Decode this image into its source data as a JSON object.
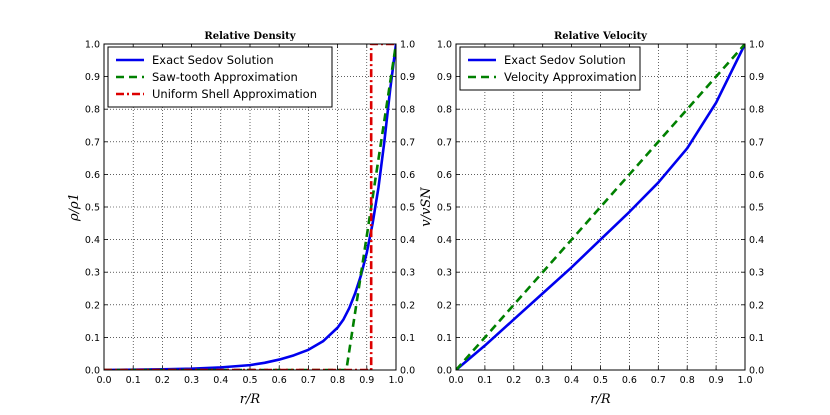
{
  "chart_data": [
    {
      "type": "line",
      "title": "Relative Density",
      "xlabel": "r/R",
      "ylabel": "ρ/ρ1",
      "xlim": [
        0.0,
        1.0
      ],
      "ylim": [
        0.0,
        1.0
      ],
      "xticks": [
        "0.0",
        "0.1",
        "0.2",
        "0.3",
        "0.4",
        "0.5",
        "0.6",
        "0.7",
        "0.8",
        "0.9",
        "1.0"
      ],
      "yticks": [
        "0.0",
        "0.1",
        "0.2",
        "0.3",
        "0.4",
        "0.5",
        "0.6",
        "0.7",
        "0.8",
        "0.9",
        "1.0"
      ],
      "grid": true,
      "legend_position": "top-left",
      "series": [
        {
          "name": "Exact Sedov Solution",
          "color": "#0000ee",
          "style": "solid",
          "x": [
            0.0,
            0.1,
            0.2,
            0.3,
            0.4,
            0.5,
            0.55,
            0.6,
            0.65,
            0.7,
            0.75,
            0.8,
            0.82,
            0.84,
            0.86,
            0.88,
            0.9,
            0.92,
            0.94,
            0.96,
            0.98,
            1.0
          ],
          "y": [
            0.0,
            0.001,
            0.002,
            0.004,
            0.008,
            0.015,
            0.022,
            0.032,
            0.045,
            0.062,
            0.088,
            0.13,
            0.155,
            0.19,
            0.235,
            0.29,
            0.36,
            0.45,
            0.56,
            0.7,
            0.86,
            1.0
          ]
        },
        {
          "name": "Saw-tooth Approximation",
          "color": "#008000",
          "style": "dashed",
          "x": [
            0.0,
            0.83,
            1.0
          ],
          "y": [
            0.0,
            0.0,
            1.0
          ]
        },
        {
          "name": "Uniform Shell Approximation",
          "color": "#dd0000",
          "style": "dashdot",
          "x": [
            0.0,
            0.915,
            0.915,
            1.0
          ],
          "y": [
            0.0,
            0.0,
            1.0,
            1.0
          ]
        }
      ]
    },
    {
      "type": "line",
      "title": "Relative Velocity",
      "xlabel": "r/R",
      "ylabel": "v/vSN",
      "xlim": [
        0.0,
        1.0
      ],
      "ylim": [
        0.0,
        1.0
      ],
      "xticks": [
        "0.0",
        "0.1",
        "0.2",
        "0.3",
        "0.4",
        "0.5",
        "0.6",
        "0.7",
        "0.8",
        "0.9",
        "1.0"
      ],
      "yticks": [
        "0.0",
        "0.1",
        "0.2",
        "0.3",
        "0.4",
        "0.5",
        "0.6",
        "0.7",
        "0.8",
        "0.9",
        "1.0"
      ],
      "grid": true,
      "legend_position": "top-left",
      "series": [
        {
          "name": "Exact Sedov Solution",
          "color": "#0000ee",
          "style": "solid",
          "x": [
            0.0,
            0.1,
            0.2,
            0.3,
            0.4,
            0.5,
            0.6,
            0.7,
            0.8,
            0.9,
            1.0
          ],
          "y": [
            0.0,
            0.075,
            0.155,
            0.235,
            0.315,
            0.4,
            0.485,
            0.575,
            0.68,
            0.82,
            1.0
          ]
        },
        {
          "name": "Velocity Approximation",
          "color": "#008000",
          "style": "dashed",
          "x": [
            0.0,
            1.0
          ],
          "y": [
            0.0,
            1.0
          ]
        }
      ]
    }
  ]
}
